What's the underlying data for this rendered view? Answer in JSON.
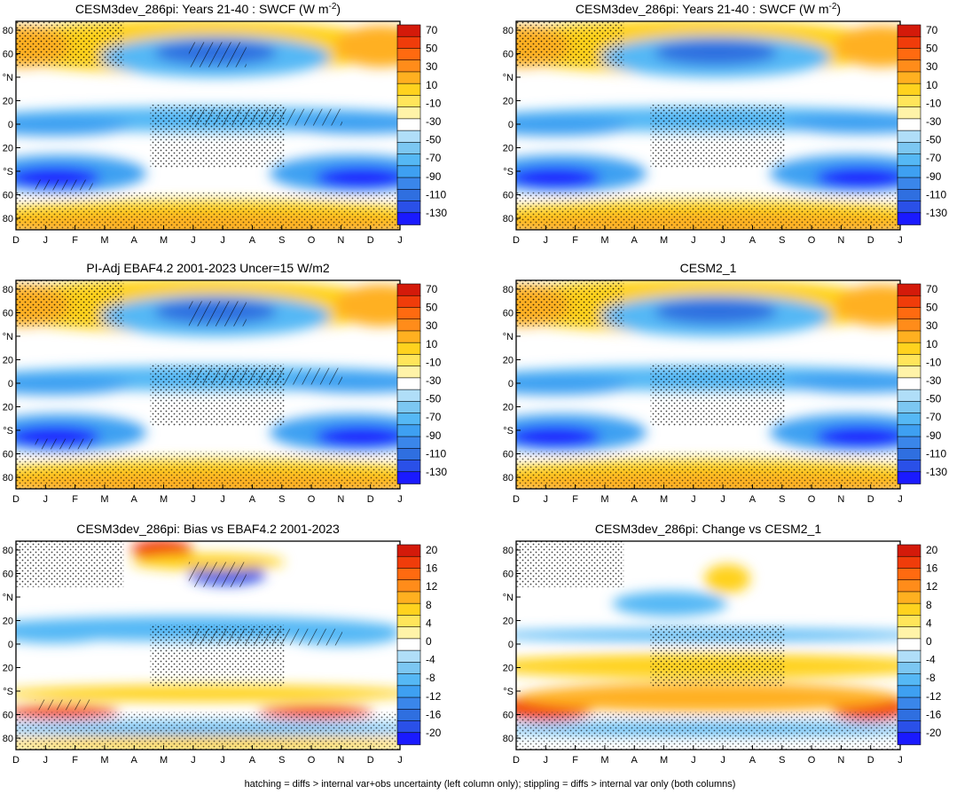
{
  "figure": {
    "footer": "hatching = diffs > internal var+obs uncertainty (left column only); stippling = diffs > internal var only (both columns)"
  },
  "months": [
    "D",
    "J",
    "F",
    "M",
    "A",
    "M",
    "J",
    "J",
    "A",
    "S",
    "O",
    "N",
    "D",
    "J"
  ],
  "lat_ticks": [
    "80",
    "60",
    "°N",
    "20",
    "0",
    "20",
    "°S",
    "60",
    "80"
  ],
  "colors": {
    "swcf_scale": [
      "#1a1aff",
      "#2a50e8",
      "#2f6fe0",
      "#3a86ea",
      "#3ea0f2",
      "#55b8f5",
      "#7cc7f2",
      "#b0def8",
      "#ffffff",
      "#fff3a8",
      "#ffe55a",
      "#ffd21e",
      "#ffb020",
      "#ff8c1a",
      "#ff6a10",
      "#f03c0a",
      "#d41a0a"
    ],
    "diff_scale": [
      "#1a1aff",
      "#2a50e8",
      "#2f6fe0",
      "#3a86ea",
      "#3ea0f2",
      "#55b8f5",
      "#7cc7f2",
      "#b0def8",
      "#ffffff",
      "#fff3a8",
      "#ffe55a",
      "#ffd21e",
      "#ffb020",
      "#ff8c1a",
      "#ff6a10",
      "#f03c0a",
      "#d41a0a"
    ]
  },
  "chart_data": [
    {
      "type": "heatmap",
      "title": "CESM3dev_286pi: Years 21-40 : SWCF (W m",
      "title_sup": "-2",
      "title_end": ")",
      "colorbar_labels": [
        "70",
        "50",
        "30",
        "10",
        "-10",
        "-30",
        "-50",
        "-70",
        "-90",
        "-110",
        "-130"
      ],
      "has_hatching": true,
      "variant": "sw1"
    },
    {
      "type": "heatmap",
      "title": "CESM3dev_286pi: Years 21-40 : SWCF (W m",
      "title_sup": "-2",
      "title_end": ")",
      "colorbar_labels": [
        "70",
        "50",
        "30",
        "10",
        "-10",
        "-30",
        "-50",
        "-70",
        "-90",
        "-110",
        "-130"
      ],
      "has_hatching": false,
      "variant": "sw2"
    },
    {
      "type": "heatmap",
      "title": "PI-Adj EBAF4.2 2001-2023 Uncer=15 W/m2",
      "title_sup": "",
      "title_end": "",
      "colorbar_labels": [
        "70",
        "50",
        "30",
        "10",
        "-10",
        "-30",
        "-50",
        "-70",
        "-90",
        "-110",
        "-130"
      ],
      "has_hatching": true,
      "variant": "sw3"
    },
    {
      "type": "heatmap",
      "title": "CESM2_1",
      "title_sup": "",
      "title_end": "",
      "colorbar_labels": [
        "70",
        "50",
        "30",
        "10",
        "-10",
        "-30",
        "-50",
        "-70",
        "-90",
        "-110",
        "-130"
      ],
      "has_hatching": false,
      "variant": "sw4"
    },
    {
      "type": "heatmap",
      "title": "CESM3dev_286pi: Bias vs EBAF4.2 2001-2023",
      "title_sup": "",
      "title_end": "",
      "colorbar_labels": [
        "20",
        "16",
        "12",
        "8",
        "4",
        "0",
        "-4",
        "-8",
        "-12",
        "-16",
        "-20"
      ],
      "has_hatching": true,
      "variant": "d1"
    },
    {
      "type": "heatmap",
      "title": "CESM3dev_286pi: Change vs CESM2_1",
      "title_sup": "",
      "title_end": "",
      "colorbar_labels": [
        "20",
        "16",
        "12",
        "8",
        "4",
        "0",
        "-4",
        "-8",
        "-12",
        "-16",
        "-20"
      ],
      "has_hatching": false,
      "variant": "d2"
    }
  ]
}
